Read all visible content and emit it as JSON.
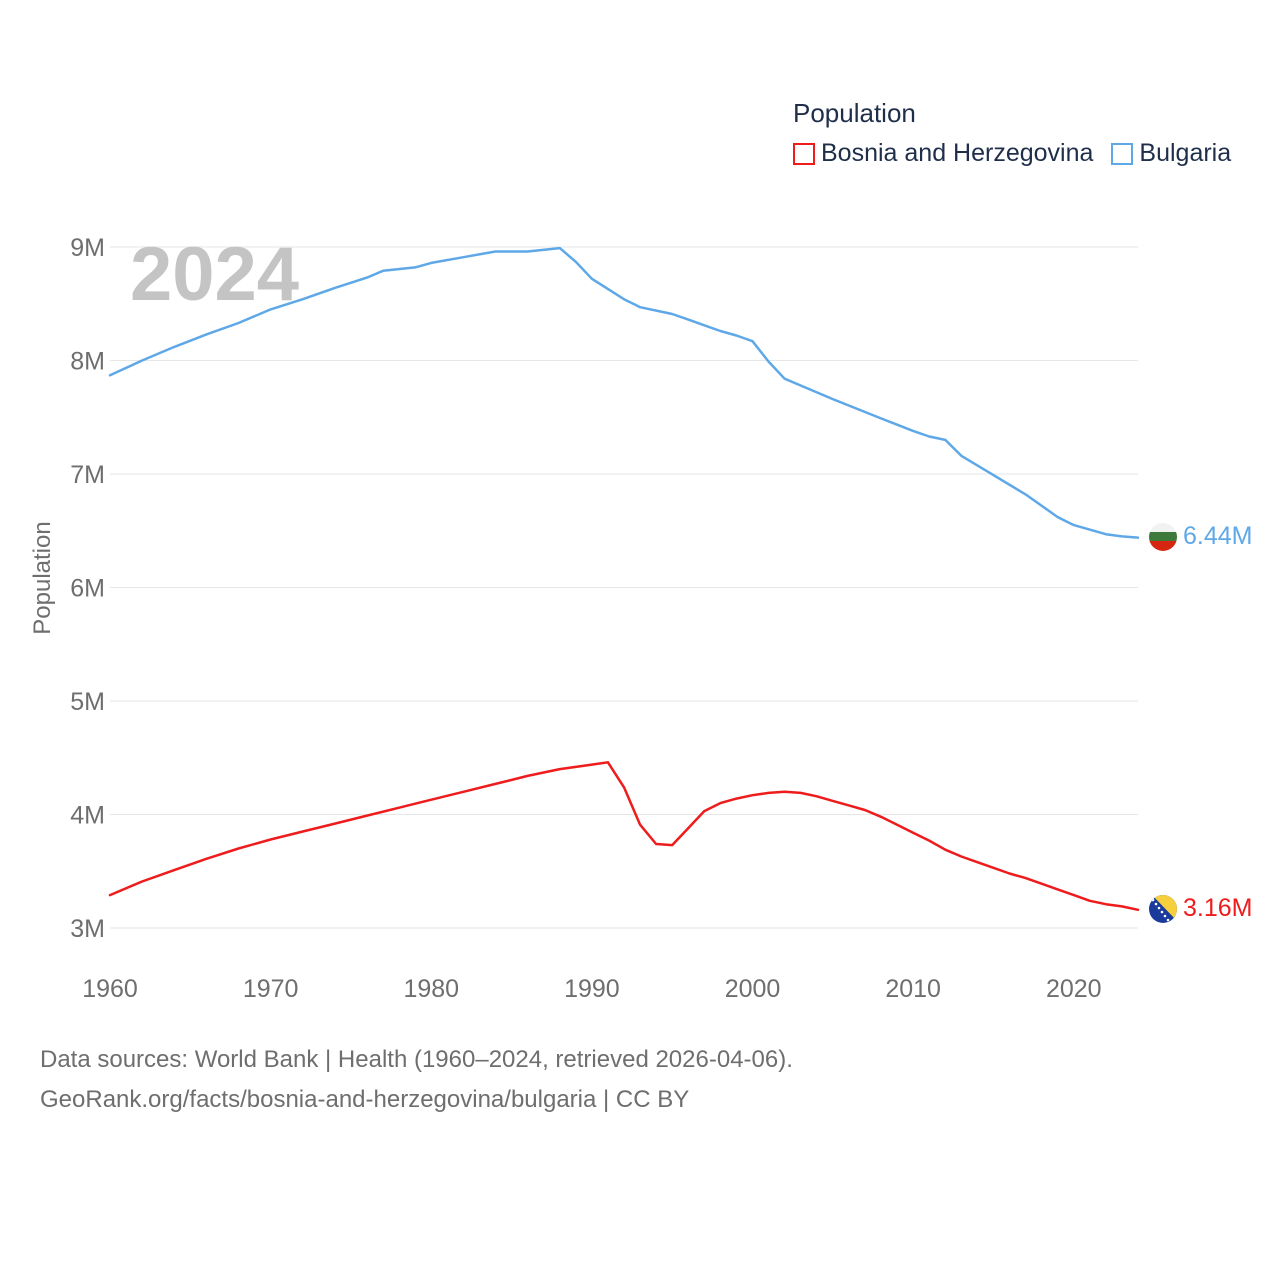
{
  "colors": {
    "bosnia": "#ee1c1c",
    "bulgaria": "#5ea8e8",
    "grid": "#e6e6e6",
    "tick": "#6e6e6e",
    "year_watermark": "#c4c4c4"
  },
  "legend": {
    "title": "Population",
    "items": [
      {
        "name": "Bosnia and Herzegovina"
      },
      {
        "name": "Bulgaria"
      }
    ]
  },
  "year_label": "2024",
  "end_labels": {
    "bulgaria": "6.44M",
    "bosnia": "3.16M"
  },
  "footer": {
    "line1": "Data sources: World Bank | Health (1960–2024, retrieved 2026-04-06).",
    "line2": "GeoRank.org/facts/bosnia-and-herzegovina/bulgaria | CC BY"
  },
  "chart_data": {
    "type": "line",
    "title": "",
    "xlabel": "",
    "ylabel": "Population",
    "xlim": [
      1960,
      2024
    ],
    "ylim": [
      3000000,
      9000000
    ],
    "x_ticks": [
      1960,
      1970,
      1980,
      1990,
      2000,
      2010,
      2020
    ],
    "x_tick_labels": [
      "1960",
      "1970",
      "1980",
      "1990",
      "2000",
      "2010",
      "2020"
    ],
    "y_ticks": [
      3000000,
      4000000,
      5000000,
      6000000,
      7000000,
      8000000,
      9000000
    ],
    "y_tick_labels": [
      "3M",
      "4M",
      "5M",
      "6M",
      "7M",
      "8M",
      "9M"
    ],
    "grid": true,
    "legend_position": "top-right",
    "series": [
      {
        "name": "Bosnia and Herzegovina",
        "key": "bosnia",
        "points": [
          [
            1960,
            3290000
          ],
          [
            1962,
            3410000
          ],
          [
            1964,
            3510000
          ],
          [
            1966,
            3610000
          ],
          [
            1968,
            3700000
          ],
          [
            1970,
            3780000
          ],
          [
            1972,
            3850000
          ],
          [
            1974,
            3920000
          ],
          [
            1976,
            3990000
          ],
          [
            1978,
            4060000
          ],
          [
            1980,
            4130000
          ],
          [
            1982,
            4200000
          ],
          [
            1984,
            4270000
          ],
          [
            1986,
            4340000
          ],
          [
            1988,
            4400000
          ],
          [
            1990,
            4440000
          ],
          [
            1991,
            4460000
          ],
          [
            1992,
            4240000
          ],
          [
            1993,
            3910000
          ],
          [
            1994,
            3740000
          ],
          [
            1995,
            3730000
          ],
          [
            1996,
            3880000
          ],
          [
            1997,
            4030000
          ],
          [
            1998,
            4100000
          ],
          [
            1999,
            4140000
          ],
          [
            2000,
            4170000
          ],
          [
            2001,
            4190000
          ],
          [
            2002,
            4200000
          ],
          [
            2003,
            4190000
          ],
          [
            2004,
            4160000
          ],
          [
            2005,
            4120000
          ],
          [
            2006,
            4080000
          ],
          [
            2007,
            4040000
          ],
          [
            2008,
            3980000
          ],
          [
            2009,
            3910000
          ],
          [
            2010,
            3840000
          ],
          [
            2011,
            3770000
          ],
          [
            2012,
            3690000
          ],
          [
            2013,
            3630000
          ],
          [
            2014,
            3580000
          ],
          [
            2015,
            3530000
          ],
          [
            2016,
            3480000
          ],
          [
            2017,
            3440000
          ],
          [
            2018,
            3390000
          ],
          [
            2019,
            3340000
          ],
          [
            2020,
            3290000
          ],
          [
            2021,
            3240000
          ],
          [
            2022,
            3210000
          ],
          [
            2023,
            3190000
          ],
          [
            2024,
            3160000
          ]
        ]
      },
      {
        "name": "Bulgaria",
        "key": "bulgaria",
        "points": [
          [
            1960,
            7870000
          ],
          [
            1962,
            8000000
          ],
          [
            1964,
            8120000
          ],
          [
            1966,
            8230000
          ],
          [
            1968,
            8330000
          ],
          [
            1970,
            8450000
          ],
          [
            1972,
            8540000
          ],
          [
            1974,
            8640000
          ],
          [
            1976,
            8730000
          ],
          [
            1977,
            8790000
          ],
          [
            1979,
            8820000
          ],
          [
            1980,
            8860000
          ],
          [
            1982,
            8910000
          ],
          [
            1984,
            8960000
          ],
          [
            1986,
            8960000
          ],
          [
            1988,
            8990000
          ],
          [
            1989,
            8870000
          ],
          [
            1990,
            8720000
          ],
          [
            1992,
            8540000
          ],
          [
            1993,
            8470000
          ],
          [
            1995,
            8410000
          ],
          [
            1996,
            8360000
          ],
          [
            1997,
            8310000
          ],
          [
            1998,
            8260000
          ],
          [
            1999,
            8220000
          ],
          [
            2000,
            8170000
          ],
          [
            2001,
            7990000
          ],
          [
            2002,
            7840000
          ],
          [
            2005,
            7660000
          ],
          [
            2008,
            7490000
          ],
          [
            2010,
            7380000
          ],
          [
            2011,
            7330000
          ],
          [
            2012,
            7300000
          ],
          [
            2013,
            7160000
          ],
          [
            2015,
            6990000
          ],
          [
            2017,
            6820000
          ],
          [
            2019,
            6620000
          ],
          [
            2020,
            6550000
          ],
          [
            2022,
            6470000
          ],
          [
            2023,
            6450000
          ],
          [
            2024,
            6440000
          ]
        ]
      }
    ]
  }
}
